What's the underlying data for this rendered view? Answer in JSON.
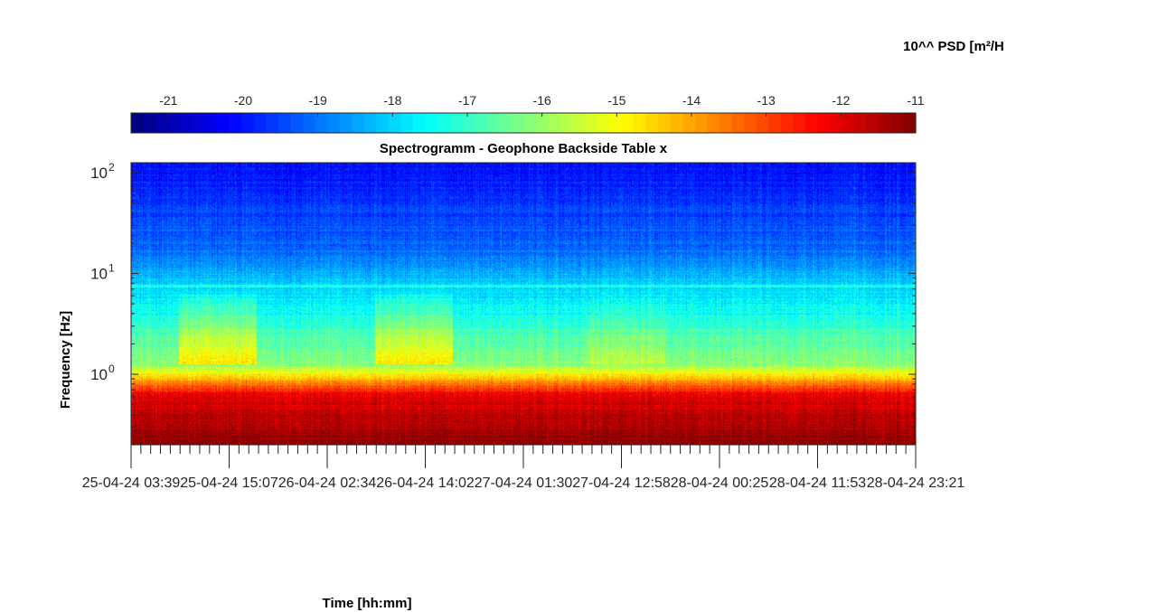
{
  "chart_data": {
    "type": "heatmap",
    "title": "Spectrogramm - Geophone Backside Table x",
    "xlabel": "Time [hh:mm]",
    "ylabel": "Frequency [Hz]",
    "y_scale": "log",
    "ylim": [
      0.2,
      125
    ],
    "y_ticks": [
      {
        "value": 1,
        "base": "10",
        "exp": "0"
      },
      {
        "value": 10,
        "base": "10",
        "exp": "1"
      },
      {
        "value": 100,
        "base": "10",
        "exp": "2"
      }
    ],
    "x_ticks": [
      "25-04-24 03:39",
      "25-04-24 15:07",
      "26-04-24 02:34",
      "26-04-24 14:02",
      "27-04-24 01:30",
      "27-04-24 12:58",
      "28-04-24 00:25",
      "28-04-24 11:53",
      "28-04-24 23:21"
    ],
    "colorbar": {
      "label": "10^^ PSD [m²/H",
      "location": "top",
      "colormap": "jet",
      "ticks": [
        "-21",
        "-20",
        "-19",
        "-18",
        "-17",
        "-16",
        "-15",
        "-14",
        "-13",
        "-12",
        "-11"
      ],
      "range": [
        -21.5,
        -11
      ]
    },
    "colors": {
      "low": "#00008f",
      "mid": "#80ff80",
      "high": "#800000"
    }
  }
}
